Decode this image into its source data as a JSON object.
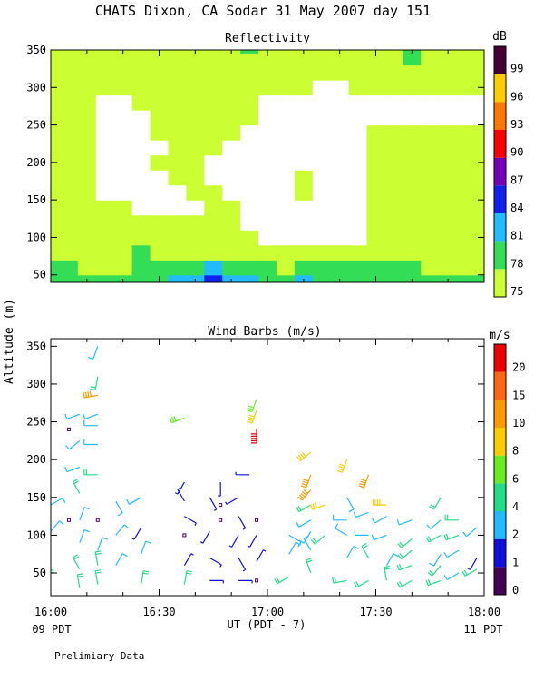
{
  "figure": {
    "title": "CHATS Dixon, CA  Sodar  31 May 2007  day 151",
    "ylabel": "Altitude (m)",
    "xlabel": "UT  (PDT - 7)",
    "left_time_label": "09 PDT",
    "right_time_label": "11 PDT",
    "footnote": "Prelimiary Data"
  },
  "chart_data": [
    {
      "type": "heatmap",
      "title": "Reflectivity",
      "colorbar_unit": "dB",
      "x_ticks": [
        "16:00",
        "16:30",
        "17:00",
        "17:30",
        "18:00"
      ],
      "y_ticks": [
        50,
        100,
        150,
        200,
        250,
        300,
        350
      ],
      "ylim": [
        40,
        350
      ],
      "xlim": [
        "16:00",
        "18:00"
      ],
      "levels": [
        75,
        78,
        81,
        84,
        87,
        90,
        93,
        96,
        99
      ],
      "level_colors": [
        "#ccff33",
        "#33dd55",
        "#22bbff",
        "#1122ee",
        "#7700bb",
        "#ff0000",
        "#ff7700",
        "#ffcc00",
        "#440033"
      ],
      "background_level_below_75": "#ffffff",
      "altitudes_m": [
        40,
        60,
        80,
        100,
        120,
        140,
        160,
        180,
        200,
        220,
        240,
        260,
        280,
        300,
        320,
        340,
        350
      ],
      "times": [
        "16:00",
        "16:05",
        "16:10",
        "16:15",
        "16:20",
        "16:25",
        "16:30",
        "16:35",
        "16:40",
        "16:45",
        "16:50",
        "16:55",
        "17:00",
        "17:05",
        "17:10",
        "17:15",
        "17:20",
        "17:25",
        "17:30",
        "17:35",
        "17:40",
        "17:45",
        "17:50",
        "17:55",
        "18:00"
      ],
      "values_db": [
        [
          79,
          79,
          79,
          79,
          80,
          80,
          79,
          81,
          83,
          84,
          83,
          81,
          79,
          79,
          81,
          79,
          79,
          80,
          80,
          79,
          79,
          79,
          79,
          79,
          79
        ],
        [
          78,
          78,
          77,
          77,
          77,
          78,
          79,
          79,
          80,
          81,
          80,
          79,
          78,
          77,
          78,
          78,
          78,
          78,
          78,
          78,
          78,
          77,
          77,
          77,
          77
        ],
        [
          76,
          76,
          76,
          76,
          77,
          78,
          77,
          77,
          77,
          77,
          77,
          76,
          75,
          75,
          76,
          76,
          76,
          76,
          76,
          75,
          75,
          75,
          76,
          76,
          76
        ],
        [
          75,
          75,
          75,
          75,
          76,
          75,
          75,
          75,
          75,
          76,
          76,
          75,
          74,
          74,
          74,
          74,
          74,
          74,
          75,
          75,
          75,
          75,
          75,
          75,
          75
        ],
        [
          75,
          75,
          75,
          75,
          75,
          75,
          75,
          75,
          75,
          75,
          75,
          74,
          73,
          73,
          74,
          74,
          74,
          74,
          75,
          75,
          75,
          75,
          75,
          75,
          75
        ],
        [
          75,
          75,
          75,
          75,
          75,
          74,
          73,
          73,
          74,
          75,
          75,
          74,
          73,
          73,
          74,
          74,
          74,
          74,
          75,
          75,
          75,
          75,
          75,
          75,
          75
        ],
        [
          75,
          75,
          75,
          74,
          74,
          74,
          73,
          74,
          75,
          75,
          74,
          73,
          73,
          74,
          75,
          74,
          74,
          74,
          75,
          75,
          75,
          75,
          75,
          75,
          75
        ],
        [
          75,
          75,
          75,
          73,
          73,
          74,
          74,
          75,
          75,
          74,
          73,
          73,
          73,
          74,
          75,
          74,
          74,
          74,
          75,
          75,
          75,
          75,
          75,
          75,
          75
        ],
        [
          76,
          76,
          75,
          73,
          73,
          74,
          75,
          75,
          75,
          74,
          73,
          73,
          73,
          74,
          74,
          74,
          74,
          74,
          75,
          75,
          76,
          75,
          75,
          75,
          75
        ],
        [
          77,
          76,
          75,
          73,
          72,
          73,
          74,
          75,
          75,
          75,
          74,
          73,
          73,
          73,
          73,
          73,
          73,
          74,
          75,
          75,
          75,
          75,
          75,
          75,
          75
        ],
        [
          77,
          77,
          75,
          73,
          72,
          73,
          75,
          75,
          75,
          75,
          75,
          74,
          74,
          73,
          73,
          73,
          73,
          74,
          75,
          75,
          75,
          75,
          75,
          75,
          75
        ],
        [
          77,
          76,
          75,
          73,
          73,
          74,
          75,
          75,
          75,
          75,
          75,
          75,
          74,
          74,
          73,
          73,
          73,
          74,
          74,
          74,
          74,
          74,
          74,
          74,
          74
        ],
        [
          76,
          75,
          75,
          74,
          74,
          75,
          75,
          75,
          75,
          75,
          75,
          75,
          74,
          74,
          74,
          73,
          73,
          73,
          74,
          74,
          74,
          74,
          74,
          74,
          74
        ],
        [
          75,
          75,
          75,
          75,
          75,
          75,
          75,
          75,
          76,
          77,
          76,
          75,
          75,
          75,
          75,
          74,
          74,
          75,
          75,
          75,
          75,
          75,
          75,
          75,
          75
        ],
        [
          75,
          75,
          75,
          75,
          75,
          75,
          75,
          75,
          75,
          76,
          75,
          75,
          75,
          75,
          76,
          77,
          77,
          76,
          75,
          75,
          75,
          75,
          75,
          75,
          75
        ],
        [
          76,
          77,
          77,
          75,
          75,
          75,
          75,
          75,
          75,
          75,
          76,
          77,
          76,
          75,
          75,
          75,
          75,
          75,
          75,
          76,
          78,
          77,
          76,
          75,
          75
        ],
        [
          77,
          77,
          77,
          76,
          75,
          75,
          75,
          75,
          75,
          76,
          77,
          78,
          77,
          75,
          75,
          75,
          75,
          75,
          75,
          76,
          78,
          77,
          76,
          75,
          75
        ]
      ]
    },
    {
      "type": "scatter",
      "title": "Wind Barbs (m/s)",
      "colorbar_unit": "m/s",
      "x_ticks": [
        "16:00",
        "16:30",
        "17:00",
        "17:30",
        "18:00"
      ],
      "y_ticks": [
        50,
        100,
        150,
        200,
        250,
        300,
        350
      ],
      "ylim": [
        20,
        360
      ],
      "xlim": [
        "16:00",
        "18:00"
      ],
      "speed_ticks": [
        0,
        1,
        2,
        4,
        6,
        8,
        10,
        15,
        20
      ],
      "speed_colors": [
        "#440055",
        "#1111dd",
        "#22bbff",
        "#22dd88",
        "#66ee22",
        "#ffcc00",
        "#ff9900",
        "#ff6611",
        "#ee0000"
      ],
      "barb_fields": [
        "time",
        "altitude_m",
        "speed_m_s",
        "direction_deg"
      ],
      "barbs": [
        [
          "16:00",
          255,
          3,
          250
        ],
        [
          "16:00",
          200,
          1,
          200
        ],
        [
          "16:00",
          165,
          9,
          210
        ],
        [
          "16:00",
          140,
          3,
          60
        ],
        [
          "16:00",
          105,
          2,
          40
        ],
        [
          "16:00",
          70,
          3,
          330
        ],
        [
          "16:00",
          35,
          5,
          350
        ],
        [
          "16:05",
          120,
          0,
          0
        ],
        [
          "16:05",
          240,
          0,
          0
        ],
        [
          "16:08",
          260,
          3,
          250
        ],
        [
          "16:08",
          225,
          3,
          230
        ],
        [
          "16:08",
          190,
          3,
          250
        ],
        [
          "16:08",
          155,
          4,
          330
        ],
        [
          "16:08",
          120,
          2,
          20
        ],
        [
          "16:08",
          90,
          2,
          20
        ],
        [
          "16:08",
          55,
          4,
          330
        ],
        [
          "16:08",
          30,
          4,
          350
        ],
        [
          "16:13",
          350,
          3,
          200
        ],
        [
          "16:13",
          310,
          4,
          190
        ],
        [
          "16:13",
          285,
          10,
          260
        ],
        [
          "16:13",
          260,
          3,
          250
        ],
        [
          "16:13",
          245,
          3,
          270
        ],
        [
          "16:13",
          220,
          3,
          270
        ],
        [
          "16:13",
          180,
          4,
          270
        ],
        [
          "16:13",
          120,
          0,
          0
        ],
        [
          "16:13",
          80,
          3,
          20
        ],
        [
          "16:13",
          60,
          4,
          350
        ],
        [
          "16:13",
          35,
          4,
          350
        ],
        [
          "16:18",
          145,
          3,
          150
        ],
        [
          "16:18",
          100,
          2,
          40
        ],
        [
          "16:18",
          60,
          2,
          30
        ],
        [
          "16:25",
          150,
          3,
          240
        ],
        [
          "16:25",
          110,
          1,
          210
        ],
        [
          "16:25",
          75,
          2,
          20
        ],
        [
          "16:25",
          35,
          4,
          10
        ],
        [
          "16:37",
          170,
          1,
          210
        ],
        [
          "16:37",
          145,
          1,
          330
        ],
        [
          "16:37",
          125,
          1,
          120
        ],
        [
          "16:37",
          100,
          0,
          0
        ],
        [
          "16:37",
          60,
          1,
          30
        ],
        [
          "16:37",
          35,
          4,
          10
        ],
        [
          "16:37",
          255,
          7,
          250
        ],
        [
          "16:44",
          150,
          1,
          150
        ],
        [
          "16:44",
          105,
          1,
          210
        ],
        [
          "16:44",
          70,
          1,
          120
        ],
        [
          "16:44",
          40,
          1,
          90
        ],
        [
          "16:47",
          170,
          1,
          180
        ],
        [
          "16:47",
          140,
          0,
          0
        ],
        [
          "16:47",
          120,
          0,
          0
        ],
        [
          "16:52",
          150,
          1,
          240
        ],
        [
          "16:52",
          125,
          1,
          150
        ],
        [
          "16:52",
          100,
          1,
          210
        ],
        [
          "16:52",
          70,
          1,
          150
        ],
        [
          "16:52",
          40,
          1,
          90
        ],
        [
          "16:55",
          180,
          1,
          270
        ],
        [
          "16:57",
          280,
          7,
          200
        ],
        [
          "16:57",
          265,
          9,
          200
        ],
        [
          "16:57",
          240,
          22,
          180
        ],
        [
          "16:57",
          120,
          0,
          0
        ],
        [
          "16:57",
          100,
          1,
          210
        ],
        [
          "16:57",
          65,
          1,
          30
        ],
        [
          "16:57",
          40,
          0,
          0
        ],
        [
          "17:06",
          100,
          2,
          120
        ],
        [
          "17:06",
          75,
          2,
          30
        ],
        [
          "17:06",
          45,
          4,
          240
        ],
        [
          "17:12",
          210,
          9,
          230
        ],
        [
          "17:12",
          180,
          10,
          200
        ],
        [
          "17:12",
          160,
          14,
          220
        ],
        [
          "17:12",
          140,
          4,
          240
        ],
        [
          "17:12",
          120,
          3,
          240
        ],
        [
          "17:12",
          105,
          3,
          210
        ],
        [
          "17:12",
          80,
          3,
          330
        ],
        [
          "17:12",
          50,
          5,
          340
        ],
        [
          "17:16",
          140,
          8,
          250
        ],
        [
          "17:16",
          100,
          4,
          230
        ],
        [
          "17:22",
          200,
          9,
          200
        ],
        [
          "17:22",
          150,
          2,
          150
        ],
        [
          "17:22",
          120,
          3,
          270
        ],
        [
          "17:22",
          100,
          2,
          300
        ],
        [
          "17:22",
          70,
          2,
          30
        ],
        [
          "17:22",
          40,
          4,
          260
        ],
        [
          "17:28",
          180,
          10,
          200
        ],
        [
          "17:28",
          130,
          3,
          250
        ],
        [
          "17:28",
          100,
          3,
          270
        ],
        [
          "17:28",
          70,
          4,
          330
        ],
        [
          "17:28",
          40,
          5,
          240
        ],
        [
          "17:33",
          140,
          9,
          270
        ],
        [
          "17:33",
          125,
          3,
          240
        ],
        [
          "17:33",
          100,
          3,
          250
        ],
        [
          "17:33",
          60,
          3,
          30
        ],
        [
          "17:33",
          40,
          4,
          350
        ],
        [
          "17:40",
          120,
          3,
          250
        ],
        [
          "17:40",
          95,
          4,
          230
        ],
        [
          "17:40",
          80,
          4,
          230
        ],
        [
          "17:40",
          60,
          4,
          250
        ],
        [
          "17:40",
          40,
          5,
          240
        ],
        [
          "17:48",
          150,
          5,
          210
        ],
        [
          "17:48",
          120,
          3,
          230
        ],
        [
          "17:48",
          100,
          4,
          240
        ],
        [
          "17:48",
          75,
          2,
          210
        ],
        [
          "17:48",
          60,
          4,
          220
        ],
        [
          "17:48",
          40,
          4,
          250
        ],
        [
          "17:53",
          120,
          4,
          270
        ],
        [
          "17:53",
          100,
          4,
          250
        ],
        [
          "17:53",
          80,
          3,
          240
        ],
        [
          "17:53",
          50,
          3,
          240
        ],
        [
          "17:58",
          110,
          3,
          230
        ],
        [
          "17:58",
          70,
          1,
          210
        ],
        [
          "17:58",
          55,
          4,
          240
        ]
      ]
    }
  ]
}
